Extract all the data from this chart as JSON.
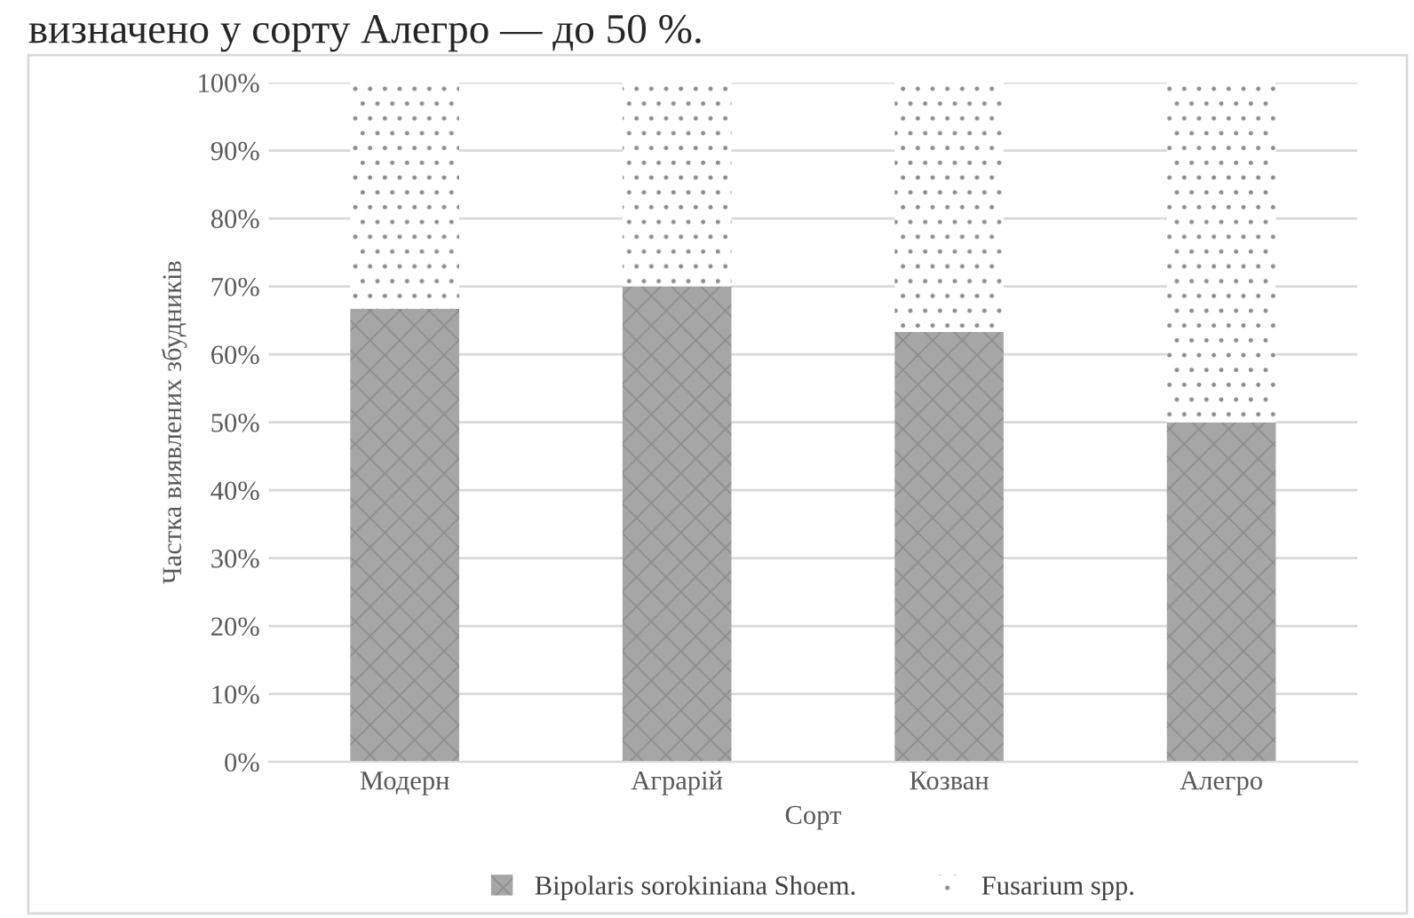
{
  "chart_data": {
    "type": "bar",
    "stacked": true,
    "xlabel": "Сорт",
    "ylabel": "Частка виявлених збудників",
    "categories": [
      "Модерн",
      "Аграрій",
      "Козван",
      "Алегро"
    ],
    "series": [
      {
        "name": "Bipolaris sorokiniana Shoem.",
        "color": "#a6a6a6",
        "values": [
          66.7,
          70,
          63.3,
          50
        ]
      },
      {
        "name": "Fusarium spp.",
        "color": "#ffffff",
        "values": [
          33.3,
          30,
          36.7,
          50
        ]
      }
    ],
    "ylim": [
      0,
      100
    ],
    "yticks": [
      {
        "value": 0,
        "label": "0%"
      },
      {
        "value": 10,
        "label": "10%"
      },
      {
        "value": 20,
        "label": "20%"
      },
      {
        "value": 30,
        "label": "30%"
      },
      {
        "value": 40,
        "label": "40%"
      },
      {
        "value": 50,
        "label": "50%"
      },
      {
        "value": 60,
        "label": "60%"
      },
      {
        "value": 70,
        "label": "70%"
      },
      {
        "value": 80,
        "label": "80%"
      },
      {
        "value": 90,
        "label": "90%"
      },
      {
        "value": 100,
        "label": "100%"
      }
    ],
    "grid": "y",
    "legend": "bottom",
    "annotations": [
      "визначено у сорту Алегро — до 50 %."
    ]
  }
}
